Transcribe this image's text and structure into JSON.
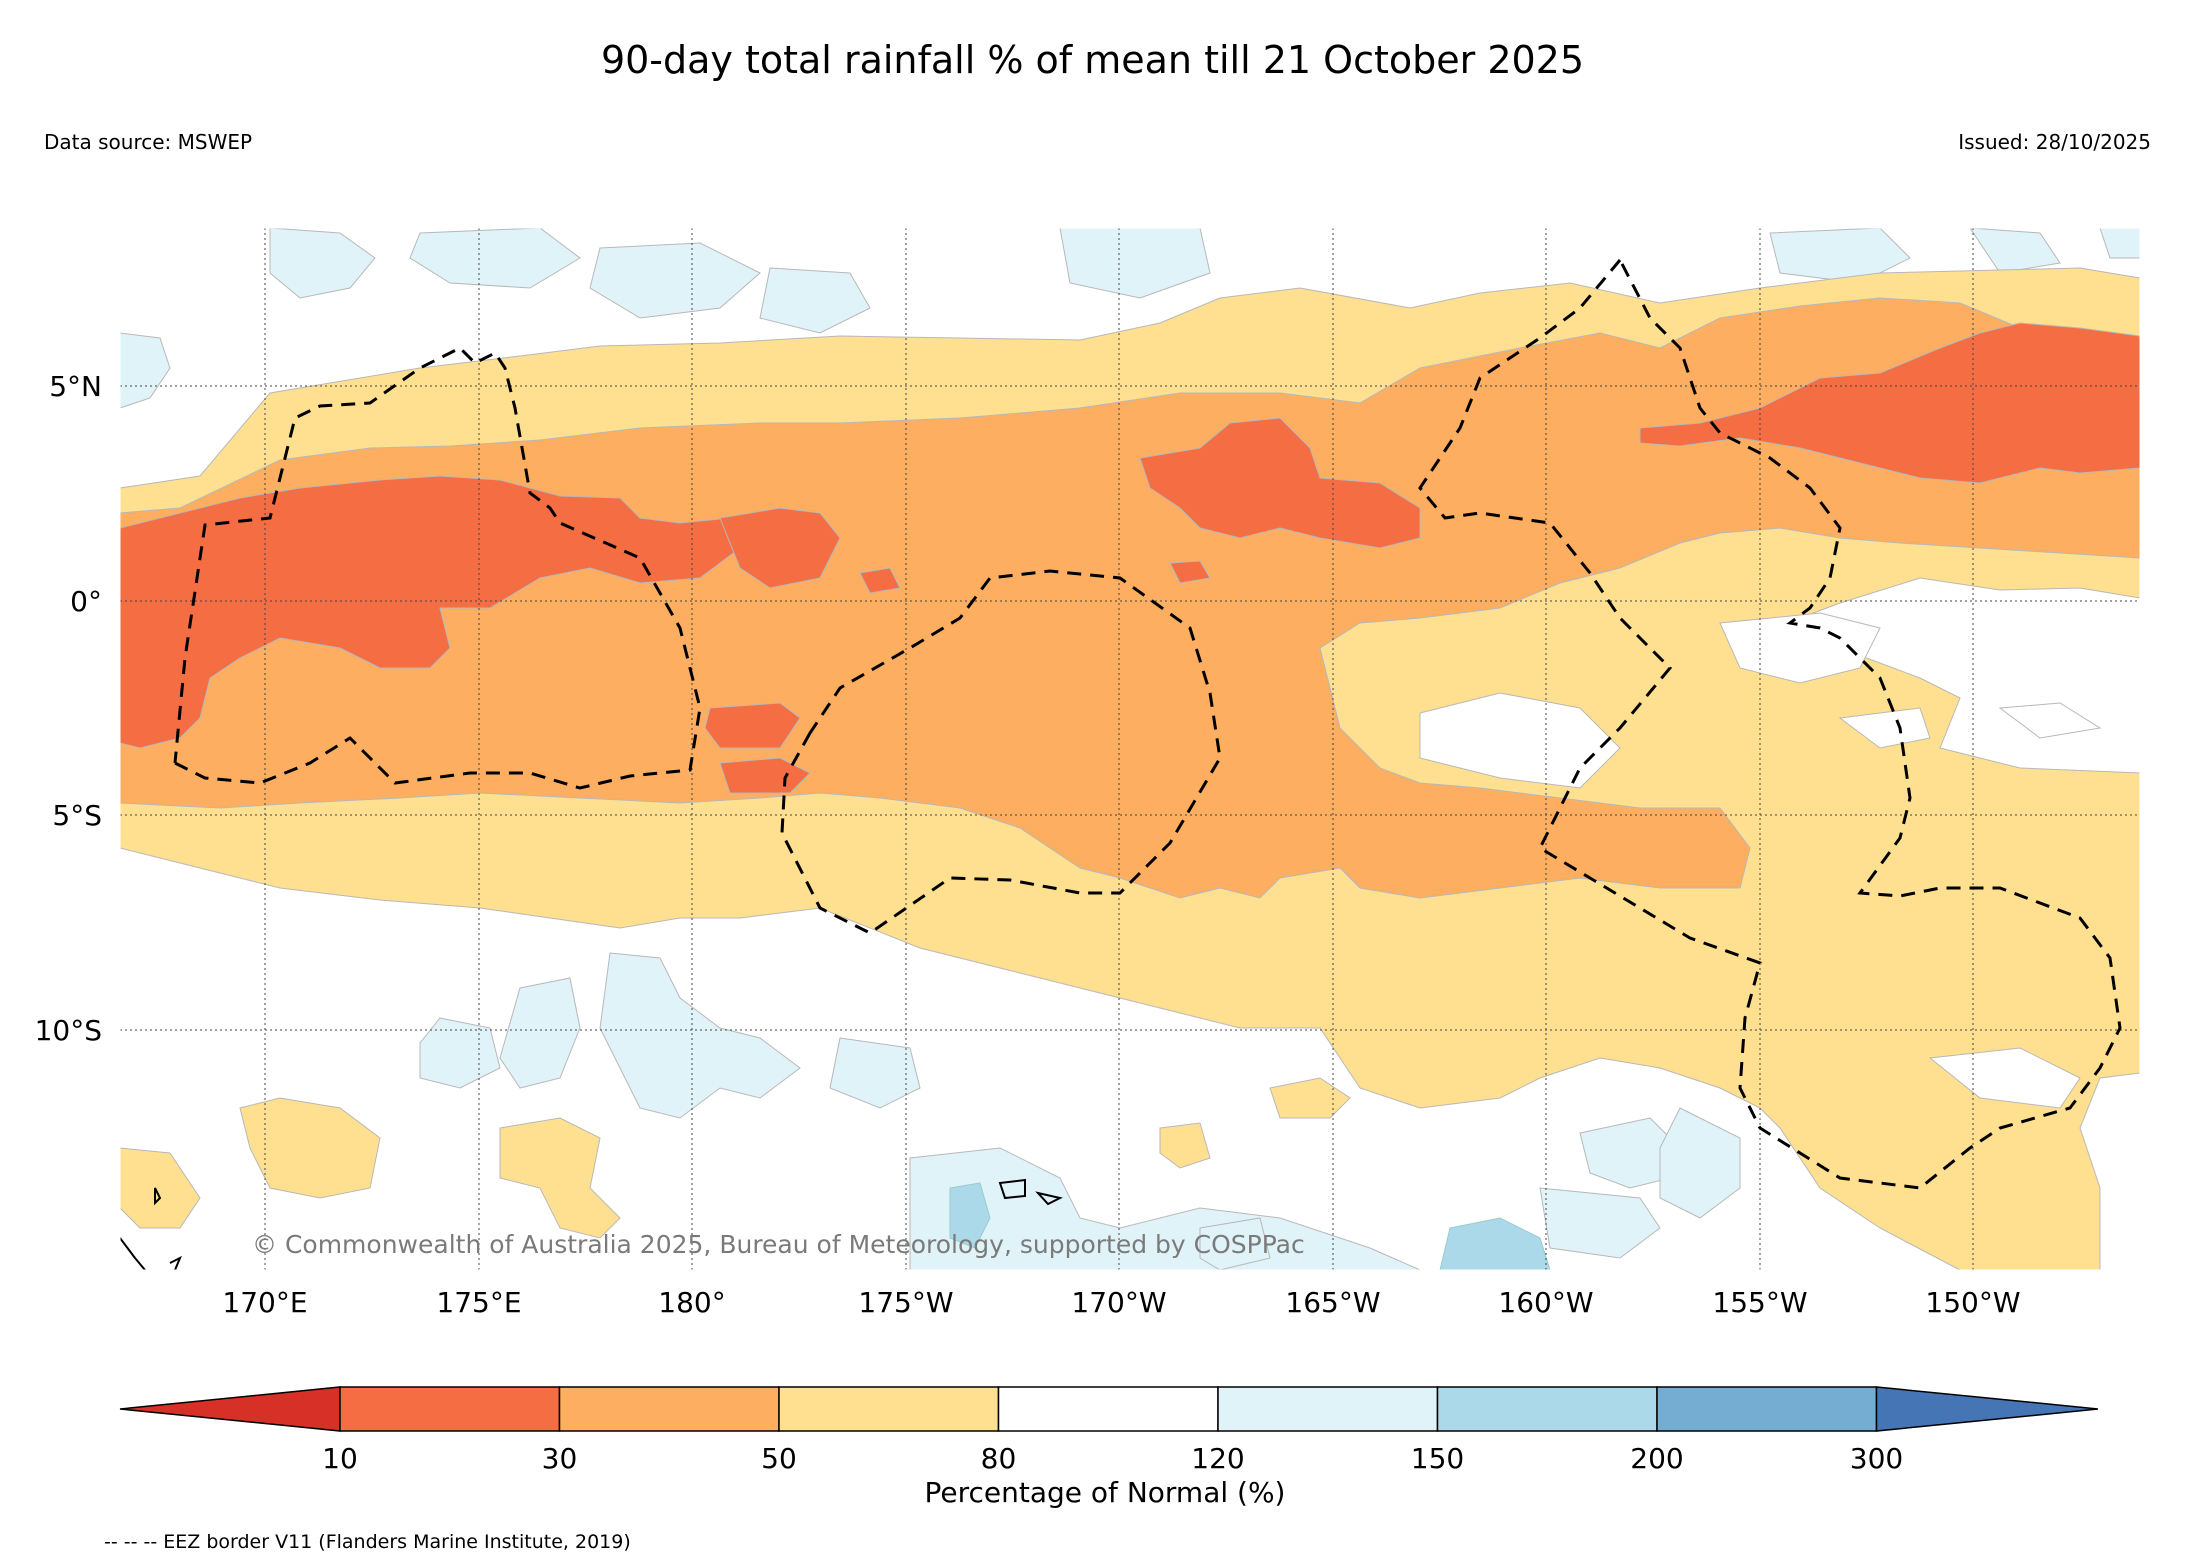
{
  "title": "90-day total rainfall % of mean till 21 October 2025",
  "data_source": "Data source: MSWEP",
  "issued": "Issued: 28/10/2025",
  "copyright": "© Commonwealth of Australia 2025, Bureau of Meteorology, supported by COSPPac",
  "lat_labels": [
    "5°N",
    "0°",
    "5°S",
    "10°S"
  ],
  "lon_labels": [
    "170°E",
    "175°E",
    "180°",
    "175°W",
    "170°W",
    "165°W",
    "160°W",
    "155°W",
    "150°W"
  ],
  "colorbar": {
    "title": "Percentage of Normal (%)",
    "ticks": [
      "10",
      "30",
      "50",
      "80",
      "120",
      "150",
      "200",
      "300"
    ],
    "colors": [
      "#d73027",
      "#f46d43",
      "#fdae61",
      "#fee090",
      "#ffffff",
      "#e0f3f8",
      "#abd9e9",
      "#74add1",
      "#4575b4"
    ]
  },
  "legend_note": "-- -- -- EEZ border V11 (Flanders Marine Institute, 2019)",
  "map_data": {
    "lon_range": [
      "167°E",
      "146°W"
    ],
    "lat_range": [
      "15°S",
      "9°N"
    ],
    "pattern": "Dry band (10–50% of normal) along the equator, wettest-deficit cores near 175°E–180° and 150°W at 3°N; near-normal to slightly wet south of 10°S"
  }
}
